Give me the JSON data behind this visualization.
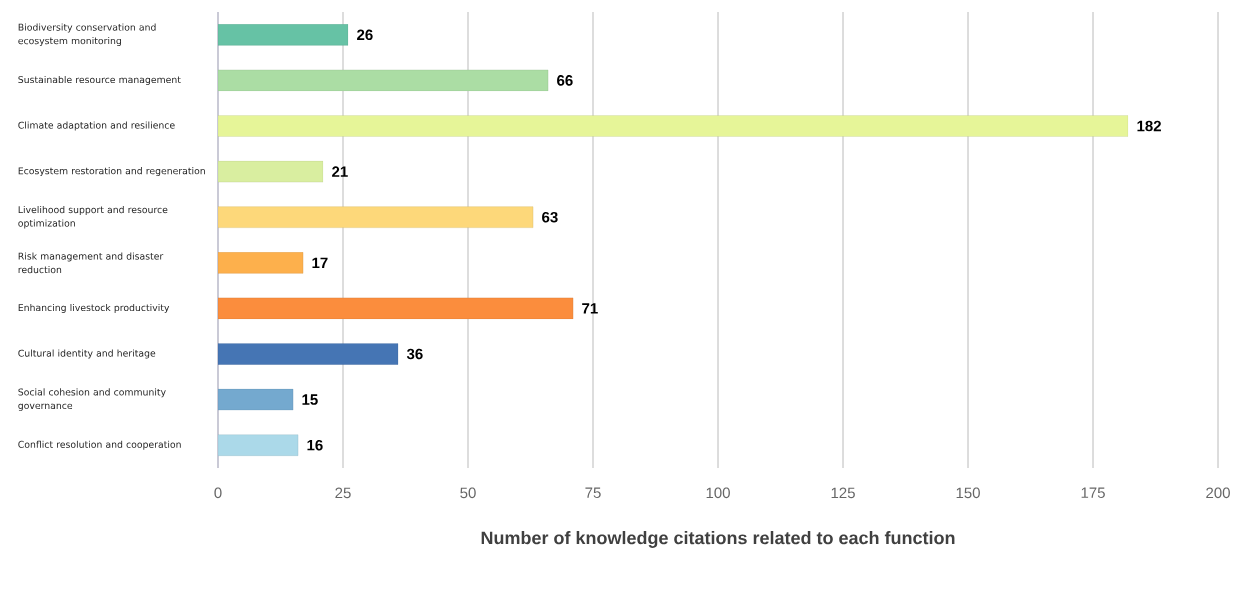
{
  "chart_data": {
    "type": "bar",
    "orientation": "horizontal",
    "xlabel": "Number of knowledge citations related to each function",
    "categories": [
      "Biodiversity conservation and ecosystem monitoring",
      "Sustainable resource management",
      "Climate adaptation and resilience",
      "Ecosystem restoration and regeneration",
      "Livelihood support and resource optimization",
      "Risk management and disaster reduction",
      "Enhancing livestock productivity",
      "Cultural identity and heritage",
      "Social cohesion and community governance",
      "Conflict resolution and cooperation"
    ],
    "values": [
      26,
      66,
      182,
      21,
      63,
      17,
      71,
      36,
      15,
      16
    ],
    "colors": [
      "#66c2a5",
      "#abdda4",
      "#e6f598",
      "#d9eea0",
      "#fdd87a",
      "#fdb04c",
      "#fb8d3d",
      "#4575b4",
      "#74a9cf",
      "#abd9e9"
    ],
    "xlim": [
      0,
      200
    ],
    "xticks": [
      0,
      25,
      50,
      75,
      100,
      125,
      150,
      175,
      200
    ],
    "grid": "x",
    "data_labels": true
  }
}
